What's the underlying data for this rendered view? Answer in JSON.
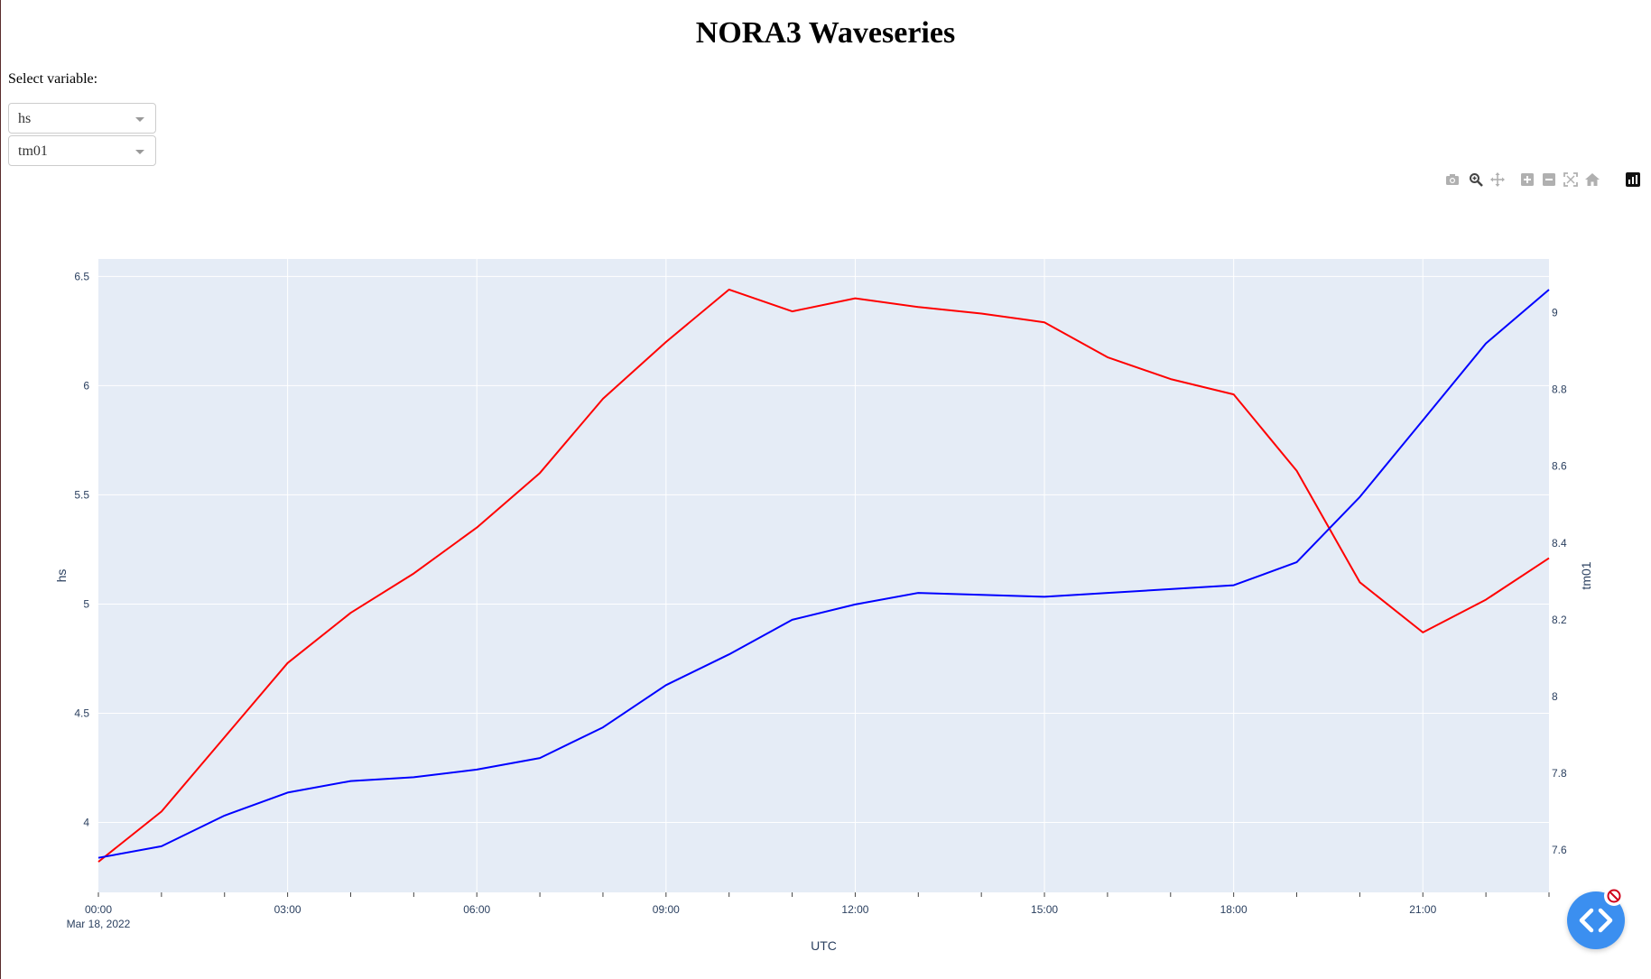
{
  "page": {
    "title": "NORA3 Waveseries"
  },
  "controls": {
    "select_label": "Select variable:",
    "dropdowns": [
      {
        "value": "hs"
      },
      {
        "value": "tm01"
      }
    ]
  },
  "modebar": {
    "icons": [
      "camera-icon",
      "zoom-icon",
      "pan-icon",
      "zoom-in-icon",
      "zoom-out-icon",
      "autoscale-icon",
      "reset-axes-icon",
      "plotly-logo-icon"
    ]
  },
  "colors": {
    "plot_bg": "#e5ecf6",
    "grid": "#ffffff",
    "hs_line": "#ff0000",
    "tm01_line": "#0000ff",
    "text": "#2a3f5f",
    "fab": "#3b8ff0",
    "badge": "#d0021b"
  },
  "chart_data": {
    "type": "line",
    "title": "",
    "xlabel": "UTC",
    "x": [
      "00:00",
      "01:00",
      "02:00",
      "03:00",
      "04:00",
      "05:00",
      "06:00",
      "07:00",
      "08:00",
      "09:00",
      "10:00",
      "11:00",
      "12:00",
      "13:00",
      "14:00",
      "15:00",
      "16:00",
      "17:00",
      "18:00",
      "19:00",
      "20:00",
      "21:00",
      "22:00",
      "23:00"
    ],
    "x_ticks": [
      "00:00",
      "03:00",
      "06:00",
      "09:00",
      "12:00",
      "15:00",
      "18:00",
      "21:00"
    ],
    "x_date_label": "Mar 18, 2022",
    "y_left": {
      "label": "hs",
      "range": [
        3.68,
        6.58
      ],
      "ticks": [
        "4",
        "4.5",
        "5",
        "5.5",
        "6",
        "6.5"
      ]
    },
    "y_right": {
      "label": "tm01",
      "range": [
        7.49,
        9.14
      ],
      "ticks": [
        "7.6",
        "7.8",
        "8",
        "8.2",
        "8.4",
        "8.6",
        "8.8",
        "9"
      ]
    },
    "grid": true,
    "series": [
      {
        "name": "hs",
        "axis": "left",
        "color": "#ff0000",
        "values": [
          3.82,
          4.05,
          4.39,
          4.73,
          4.96,
          5.14,
          5.35,
          5.6,
          5.94,
          6.2,
          6.44,
          6.34,
          6.4,
          6.36,
          6.33,
          6.29,
          6.13,
          6.03,
          5.96,
          5.61,
          5.1,
          4.87,
          5.02,
          5.21
        ]
      },
      {
        "name": "tm01",
        "axis": "right",
        "color": "#0000ff",
        "values": [
          7.58,
          7.61,
          7.69,
          7.75,
          7.78,
          7.79,
          7.81,
          7.84,
          7.92,
          8.03,
          8.11,
          8.2,
          8.24,
          8.27,
          8.265,
          8.26,
          8.27,
          8.28,
          8.29,
          8.35,
          8.52,
          8.72,
          8.92,
          9.06
        ]
      }
    ]
  }
}
